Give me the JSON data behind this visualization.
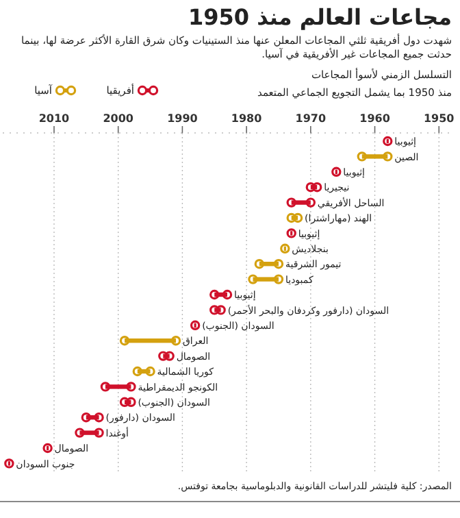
{
  "chart_data": {
    "type": "bar",
    "orientation": "horizontal",
    "title": "مجاعات العالم منذ 1950",
    "subtitle": "شهدت دول أفريقية ثلثي المجاعات المعلن عنها منذ الستينيات وكان شرق القارة الأكثر عرضة لها، بينما حدثت جميع المجاعات غير الأفريقية في آسيا.",
    "annotations": [
      "التسلسل الزمني لأسوأ المجاعات",
      "منذ 1950 بما يشمل التجويع الجماعي المتعمد",
      "المصدر: كلية فليتشر للدراسات القانونية والدبلوماسية بجامعة توفتس."
    ],
    "categories": [
      "إثيوبيا",
      "الصين",
      "إثيوبيا",
      "نيجيريا",
      "الساحل الأفريقي",
      "الهند (مهاراشترا)",
      "إثيوبيا",
      "بنجلاديش",
      "تيمور الشرقية",
      "كمبوديا",
      "إثيوبيا",
      "السودان (دارفور وكردفان والبحر الأحمر)",
      "السودان (الجنوب)",
      "العراق",
      "الصومال",
      "كوريا الشمالية",
      "الكونجو الديمقراطية",
      "السودان (الجنوب)",
      "السودان (دارفور)",
      "أوغندا",
      "الصومال",
      "جنوب السودان"
    ],
    "series": [
      {
        "name": "أفريقيا",
        "color": "#d0112b",
        "base": [
          1958,
          null,
          1966,
          1969,
          1970,
          null,
          1973,
          null,
          null,
          null,
          1983,
          1984,
          1988,
          null,
          1992,
          null,
          1998,
          1998,
          2003,
          2003,
          2011,
          2017
        ],
        "values": [
          0,
          null,
          0,
          1,
          3,
          null,
          0,
          null,
          null,
          null,
          2,
          1,
          0,
          null,
          1,
          null,
          4,
          1,
          2,
          3,
          0,
          0
        ]
      },
      {
        "name": "آسيا",
        "color": "#d4a10f",
        "base": [
          null,
          1958,
          null,
          null,
          null,
          1972,
          null,
          1974,
          1975,
          1975,
          null,
          null,
          null,
          1991,
          null,
          1995,
          null,
          null,
          null,
          null,
          null,
          null
        ],
        "values": [
          null,
          4,
          null,
          null,
          null,
          1,
          null,
          0,
          3,
          4,
          null,
          null,
          null,
          8,
          null,
          2,
          null,
          null,
          null,
          null,
          null,
          null
        ]
      }
    ],
    "xlim": [
      2018,
      1948
    ],
    "xticks": [
      2010,
      2000,
      1990,
      1980,
      1970,
      1960,
      1950
    ],
    "grid": "x",
    "legend": "top left",
    "marker": "circle"
  }
}
